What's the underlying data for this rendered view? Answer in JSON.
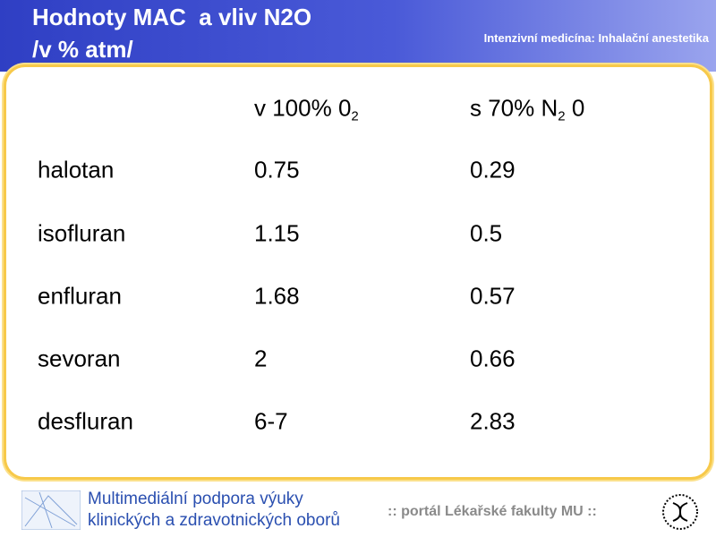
{
  "header": {
    "title_lines": [
      "Hodnoty MAC  a vliv N2O",
      "/v % atm/"
    ],
    "subtitle": "Intenzivní medicína: Inhalační anestetika"
  },
  "table": {
    "headers": [
      [],
      [
        {
          "text": "v 100% 0"
        },
        {
          "sub": "2"
        }
      ],
      [
        {
          "text": "s 70% N"
        },
        {
          "sub": "2"
        },
        {
          "text": " 0"
        }
      ]
    ],
    "rows": [
      [
        "halotan",
        0.75,
        0.29
      ],
      [
        "isofluran",
        1.15,
        0.5
      ],
      [
        "enfluran",
        1.68,
        0.57
      ],
      [
        "sevoran",
        2,
        0.66
      ],
      [
        "desfluran",
        "6-7",
        2.83
      ]
    ]
  },
  "footer": {
    "brand_lines": [
      "Multimediální podpora výuky",
      "klinických a zdravotnických oborů"
    ],
    "portal": ":: portál Lékařské fakulty MU ::"
  }
}
